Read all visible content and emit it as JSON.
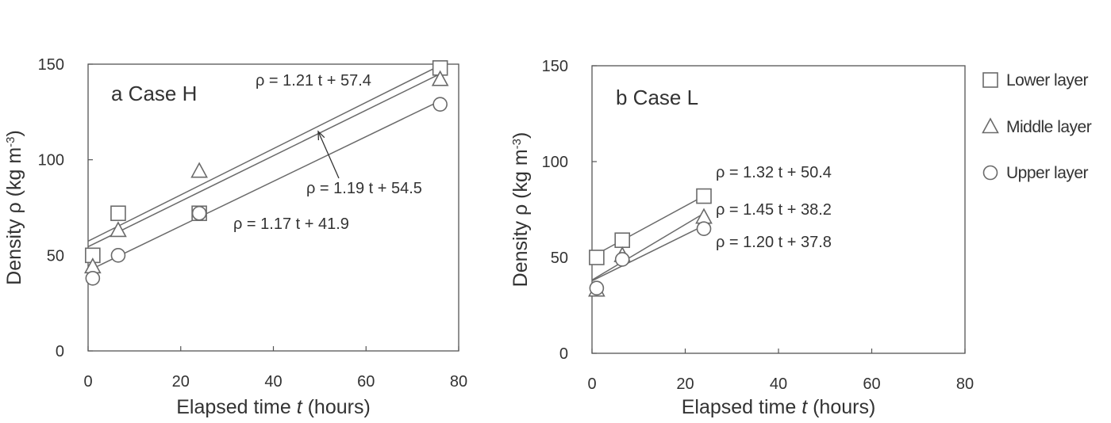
{
  "chart_data": [
    {
      "type": "scatter",
      "panel_label": "a  Case H",
      "xlabel_prefix": "Elapsed time ",
      "xlabel_var": "t",
      "xlabel_suffix": " (hours)",
      "ylabel": "Density  ρ (kg m",
      "ylabel_exp": "-3",
      "ylabel_close": ")",
      "xlim": [
        0,
        80
      ],
      "ylim": [
        0,
        150
      ],
      "xticks": [
        "0",
        "20",
        "40",
        "60",
        "80"
      ],
      "yticks": [
        "0",
        "50",
        "100",
        "150"
      ],
      "grid": false,
      "series": [
        {
          "name": "Lower layer",
          "marker": "square",
          "x": [
            1,
            6.5,
            24,
            76
          ],
          "y": [
            50,
            72,
            72,
            148
          ],
          "fit": {
            "slope": 1.21,
            "intercept": 57.4,
            "label": "ρ = 1.21 t + 57.4"
          }
        },
        {
          "name": "Middle layer",
          "marker": "triangle",
          "x": [
            1,
            6.5,
            24,
            76
          ],
          "y": [
            44,
            63,
            94,
            142
          ],
          "fit": {
            "slope": 1.19,
            "intercept": 54.5,
            "label": "ρ = 1.19 t + 54.5"
          }
        },
        {
          "name": "Upper layer",
          "marker": "circle",
          "x": [
            1,
            6.5,
            24,
            76
          ],
          "y": [
            38,
            50,
            72,
            129
          ],
          "fit": {
            "slope": 1.17,
            "intercept": 41.9,
            "label": "ρ = 1.17 t + 41.9"
          }
        }
      ]
    },
    {
      "type": "scatter",
      "panel_label": "b  Case L",
      "xlabel_prefix": "Elapsed time ",
      "xlabel_var": "t",
      "xlabel_suffix": " (hours)",
      "ylabel": "Density  ρ (kg m",
      "ylabel_exp": "-3",
      "ylabel_close": ")",
      "xlim": [
        0,
        80
      ],
      "ylim": [
        0,
        150
      ],
      "xticks": [
        "0",
        "20",
        "40",
        "60",
        "80"
      ],
      "yticks": [
        "0",
        "50",
        "100",
        "150"
      ],
      "grid": false,
      "series": [
        {
          "name": "Lower layer",
          "marker": "square",
          "x": [
            1,
            6.5,
            24
          ],
          "y": [
            50,
            59,
            82
          ],
          "fit": {
            "slope": 1.32,
            "intercept": 50.4,
            "label": "ρ = 1.32 t + 50.4"
          }
        },
        {
          "name": "Middle layer",
          "marker": "triangle",
          "x": [
            1,
            6.5,
            24
          ],
          "y": [
            33,
            51,
            71
          ],
          "fit": {
            "slope": 1.45,
            "intercept": 38.2,
            "label": "ρ = 1.45 t + 38.2"
          }
        },
        {
          "name": "Upper layer",
          "marker": "circle",
          "x": [
            1,
            6.5,
            24
          ],
          "y": [
            34,
            49,
            65
          ],
          "fit": {
            "slope": 1.2,
            "intercept": 37.8,
            "label": "ρ = 1.20 t + 37.8"
          }
        }
      ]
    }
  ],
  "legend": {
    "placement": "right",
    "items": [
      {
        "marker": "square",
        "label": "Lower layer"
      },
      {
        "marker": "triangle",
        "label": "Middle layer"
      },
      {
        "marker": "circle",
        "label": "Upper layer"
      }
    ]
  }
}
